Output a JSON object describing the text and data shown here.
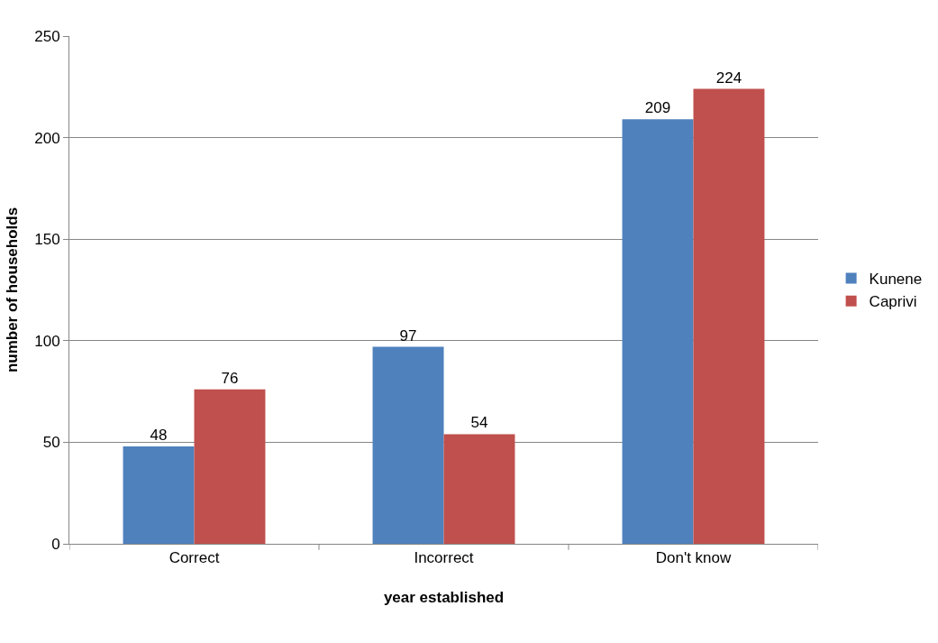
{
  "chart_data": {
    "type": "bar",
    "xlabel": "year established",
    "ylabel": "number of households",
    "categories": [
      "Correct",
      "Incorrect",
      "Don't know"
    ],
    "series": [
      {
        "name": "Kunene",
        "color": "#4f81bd",
        "values": [
          48,
          97,
          209
        ]
      },
      {
        "name": "Caprivi",
        "color": "#c0504d",
        "values": [
          76,
          54,
          224
        ]
      }
    ],
    "ylim": [
      0,
      250
    ],
    "yticks": [
      0,
      50,
      100,
      150,
      200,
      250
    ],
    "grid": "y",
    "legend": "right",
    "data_labels": true
  }
}
